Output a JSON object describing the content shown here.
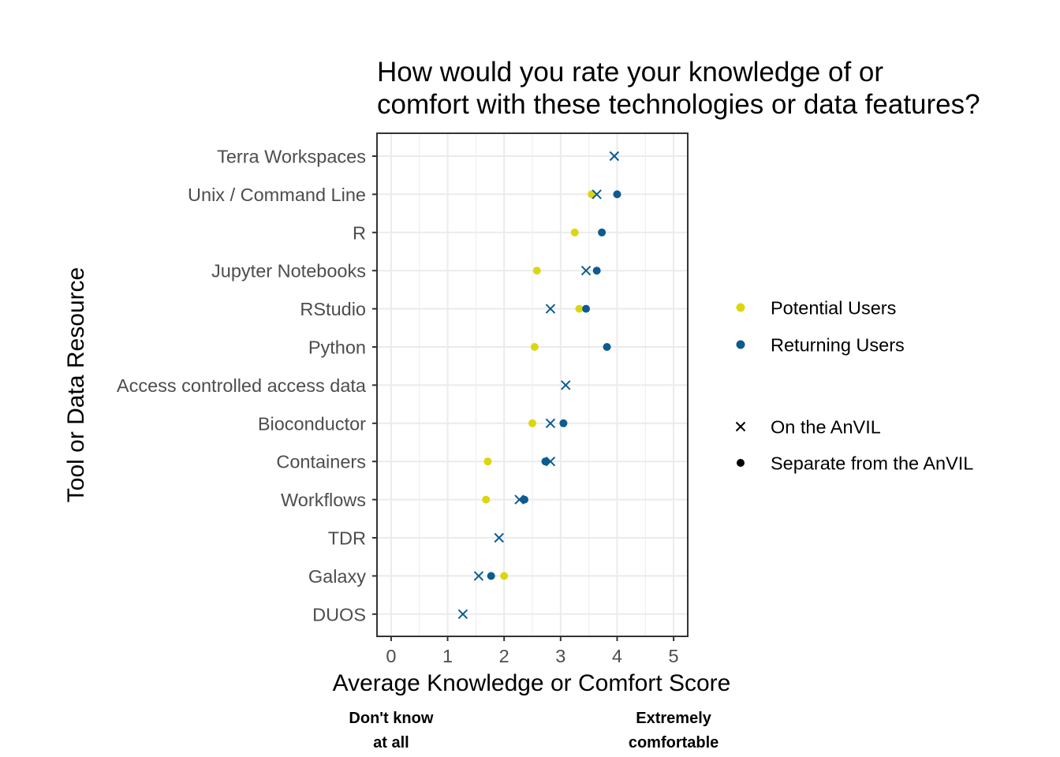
{
  "chart_data": {
    "type": "scatter",
    "title_lines": [
      "How would you rate your knowledge of or",
      "comfort with these technologies or data features?"
    ],
    "xlabel": "Average Knowledge or Comfort Score",
    "ylabel": "Tool or Data Resource",
    "xlim": [
      -0.25,
      5.25
    ],
    "x_ticks": [
      "0",
      "1",
      "2",
      "3",
      "4",
      "5"
    ],
    "grid": true,
    "legend_position": "right",
    "categories": [
      "Terra Workspaces",
      "Unix / Command Line",
      "R",
      "Jupyter Notebooks",
      "RStudio",
      "Python",
      "Access controlled access data",
      "Bioconductor",
      "Containers",
      "Workflows",
      "TDR",
      "Galaxy",
      "DUOS"
    ],
    "colors": {
      "Potential Users": "#dcd612",
      "Returning Users": "#0d5b8f"
    },
    "color_legend": [
      "Potential Users",
      "Returning Users"
    ],
    "shape_legend": [
      {
        "label": "On the AnVIL",
        "shape": "x"
      },
      {
        "label": "Separate from the AnVIL",
        "shape": "circle"
      }
    ],
    "series": [
      {
        "name": "Potential Users",
        "shape": "circle",
        "points": [
          {
            "category": "Unix / Command Line",
            "x": 3.55
          },
          {
            "category": "R",
            "x": 3.25
          },
          {
            "category": "Jupyter Notebooks",
            "x": 2.58
          },
          {
            "category": "RStudio",
            "x": 3.33
          },
          {
            "category": "Python",
            "x": 2.54
          },
          {
            "category": "Bioconductor",
            "x": 2.5
          },
          {
            "category": "Containers",
            "x": 1.71
          },
          {
            "category": "Workflows",
            "x": 1.68
          },
          {
            "category": "Galaxy",
            "x": 2.0
          }
        ]
      },
      {
        "name": "Returning Users",
        "shape": "circle",
        "points": [
          {
            "category": "Unix / Command Line",
            "x": 4.0
          },
          {
            "category": "R",
            "x": 3.73
          },
          {
            "category": "Jupyter Notebooks",
            "x": 3.64
          },
          {
            "category": "RStudio",
            "x": 3.45
          },
          {
            "category": "Python",
            "x": 3.82
          },
          {
            "category": "Bioconductor",
            "x": 3.05
          },
          {
            "category": "Containers",
            "x": 2.73
          },
          {
            "category": "Workflows",
            "x": 2.36
          },
          {
            "category": "Galaxy",
            "x": 1.77
          }
        ]
      },
      {
        "name": "Returning Users",
        "shape": "x",
        "points": [
          {
            "category": "Terra Workspaces",
            "x": 3.95
          },
          {
            "category": "Unix / Command Line",
            "x": 3.64
          },
          {
            "category": "Jupyter Notebooks",
            "x": 3.45
          },
          {
            "category": "RStudio",
            "x": 2.82
          },
          {
            "category": "Access controlled access data",
            "x": 3.09
          },
          {
            "category": "Bioconductor",
            "x": 2.82
          },
          {
            "category": "Containers",
            "x": 2.82
          },
          {
            "category": "Workflows",
            "x": 2.27
          },
          {
            "category": "TDR",
            "x": 1.91
          },
          {
            "category": "Galaxy",
            "x": 1.55
          },
          {
            "category": "DUOS",
            "x": 1.27
          }
        ]
      }
    ],
    "scale_anchors": [
      {
        "lines": [
          "Don't know",
          "at all"
        ],
        "x": 0
      },
      {
        "lines": [
          "Extremely",
          "comfortable"
        ],
        "x": 5
      }
    ]
  }
}
